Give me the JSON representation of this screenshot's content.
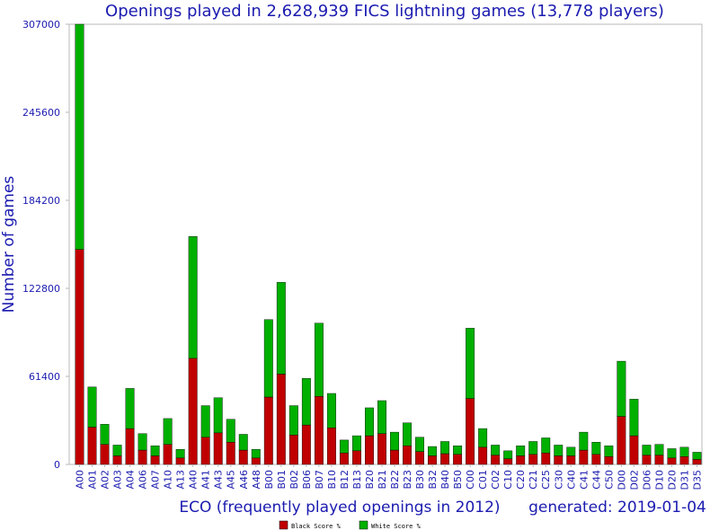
{
  "chart_data": {
    "type": "bar",
    "stacked": true,
    "title": "Openings played in 2,628,939 FICS lightning games (13,778 players)",
    "ylabel": "Number of games",
    "xlabel": "ECO (frequently played openings in 2012)",
    "generated": "generated: 2019-01-04",
    "ylim": [
      0,
      307000
    ],
    "yticks": [
      "0",
      "61400",
      "122800",
      "184200",
      "245600",
      "307000"
    ],
    "yticks_values": [
      0,
      61400,
      122800,
      184200,
      245600,
      307000
    ],
    "categories": [
      "A00",
      "A01",
      "A02",
      "A03",
      "A04",
      "A06",
      "A07",
      "A10",
      "A13",
      "A40",
      "A41",
      "A43",
      "A45",
      "A46",
      "A48",
      "B00",
      "B01",
      "B02",
      "B06",
      "B07",
      "B10",
      "B12",
      "B13",
      "B20",
      "B21",
      "B22",
      "B23",
      "B30",
      "B32",
      "B40",
      "B50",
      "C00",
      "C01",
      "C02",
      "C10",
      "C20",
      "C21",
      "C25",
      "C30",
      "C40",
      "C41",
      "C44",
      "C50",
      "D00",
      "D02",
      "D06",
      "D10",
      "D20",
      "D31",
      "D35"
    ],
    "series": [
      {
        "name": "Black Score %",
        "color": "#c00000",
        "values": [
          150000,
          26000,
          14000,
          6000,
          25000,
          10000,
          6000,
          14000,
          4500,
          74000,
          19000,
          22000,
          15500,
          10000,
          4500,
          47000,
          63000,
          20500,
          27500,
          47500,
          25500,
          8000,
          9500,
          20000,
          21500,
          10000,
          13000,
          9000,
          6000,
          7500,
          7000,
          46000,
          12000,
          6500,
          4000,
          6000,
          7000,
          8000,
          6000,
          6000,
          10000,
          7000,
          5500,
          33500,
          20000,
          6500,
          6500,
          4500,
          5500,
          3500
        ]
      },
      {
        "name": "White Score %",
        "color": "#00b000",
        "values": [
          157000,
          28000,
          14000,
          7500,
          28000,
          11500,
          7000,
          18000,
          6000,
          85000,
          22000,
          24500,
          16000,
          11000,
          6000,
          54000,
          64000,
          20500,
          32500,
          51000,
          24000,
          9000,
          10500,
          19500,
          23000,
          12500,
          16000,
          10000,
          6500,
          8500,
          6000,
          49000,
          13000,
          7000,
          5500,
          7000,
          9000,
          10500,
          7500,
          6000,
          12500,
          8500,
          7500,
          38500,
          25500,
          7000,
          7500,
          6500,
          6500,
          5000
        ]
      }
    ],
    "legend": {
      "position": "bottom-center"
    },
    "grid": false
  }
}
